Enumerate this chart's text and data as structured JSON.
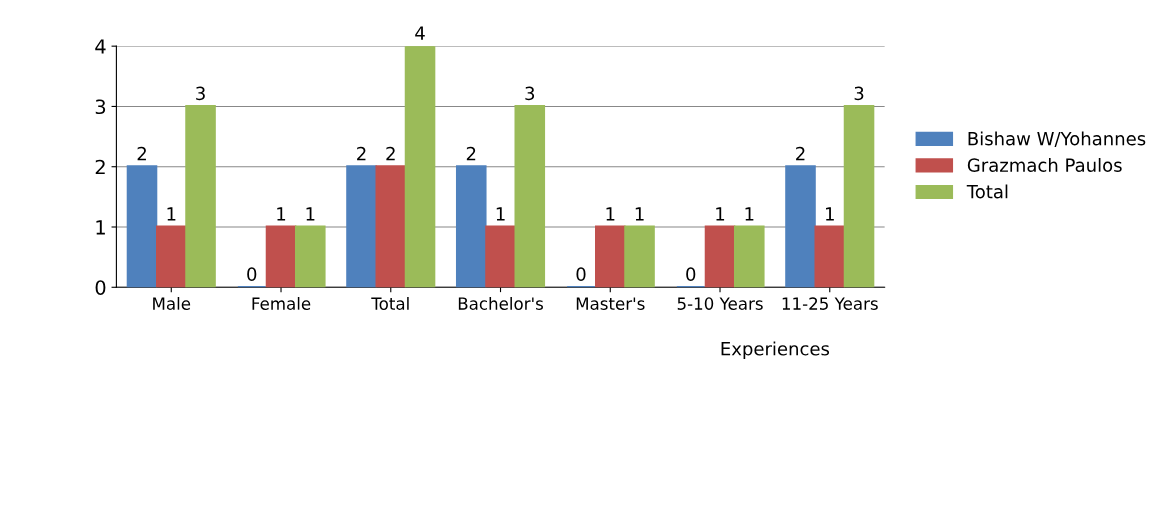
{
  "chart_data": {
    "type": "bar",
    "categories": [
      "Male",
      "Female",
      "Total",
      "Bachelor's",
      "Master's",
      "5-10 Years",
      "11-25 Years"
    ],
    "series": [
      {
        "name": "Bishaw W/Yohannes",
        "color": "#4f81bd",
        "values": [
          2,
          0,
          2,
          2,
          0,
          0,
          2
        ]
      },
      {
        "name": "Grazmach Paulos",
        "color": "#c0504d",
        "values": [
          1,
          1,
          2,
          1,
          1,
          1,
          1
        ]
      },
      {
        "name": "Total",
        "color": "#9bbb59",
        "values": [
          3,
          1,
          4,
          3,
          1,
          1,
          3
        ]
      }
    ],
    "ylim": [
      0,
      4
    ],
    "yticks": [
      0,
      1,
      2,
      3,
      4
    ],
    "grid": "y",
    "legend": "right",
    "data_labels": true,
    "annotations": [
      "Experiences"
    ]
  }
}
